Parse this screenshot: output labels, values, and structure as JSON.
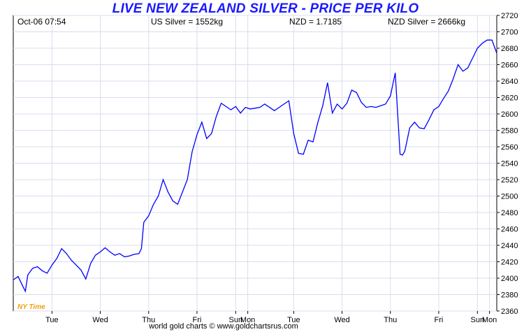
{
  "header": {
    "title": "LIVE NEW ZEALAND SILVER - PRICE PER KILO",
    "timestamp": "Oct-06  07:54",
    "us_silver": "US Silver = 1552kg",
    "nzd_rate": "NZD = 1.7185",
    "nzd_silver": "NZD Silver = 2666kg"
  },
  "footer": "world gold charts © www.goldchartsrus.com",
  "chart_data": {
    "type": "line",
    "title": "LIVE NEW ZEALAND SILVER - PRICE PER KILO",
    "timezone_label": "NY Time",
    "ylim": [
      2360,
      2720
    ],
    "y_ticks": [
      2360,
      2380,
      2400,
      2420,
      2440,
      2460,
      2480,
      2500,
      2520,
      2540,
      2560,
      2580,
      2600,
      2620,
      2640,
      2660,
      2680,
      2700,
      2720
    ],
    "x_range": [
      0,
      10
    ],
    "x_ticks": [
      {
        "label": "Tue",
        "x": 0.8
      },
      {
        "label": "Wed",
        "x": 1.8
      },
      {
        "label": "Thu",
        "x": 2.8
      },
      {
        "label": "Fri",
        "x": 3.8
      },
      {
        "label": "Sun",
        "x": 4.6
      },
      {
        "label": "Mon",
        "x": 4.85
      },
      {
        "label": "Tue",
        "x": 5.8
      },
      {
        "label": "Wed",
        "x": 6.8
      },
      {
        "label": "Thu",
        "x": 7.8
      },
      {
        "label": "Fri",
        "x": 8.8
      },
      {
        "label": "Sun",
        "x": 9.6
      },
      {
        "label": "Mon",
        "x": 9.85
      }
    ],
    "grid": true,
    "line_color": "#0000ff",
    "series": [
      {
        "x": [
          0.0,
          0.1,
          0.2,
          0.25,
          0.3,
          0.4,
          0.5,
          0.6,
          0.7,
          0.8,
          0.9,
          1.0,
          1.1,
          1.2,
          1.3,
          1.4,
          1.5,
          1.6,
          1.7,
          1.8,
          1.9,
          2.0,
          2.1,
          2.2,
          2.3,
          2.4,
          2.5,
          2.6,
          2.65,
          2.7,
          2.8,
          2.9,
          3.0,
          3.1,
          3.2,
          3.3,
          3.4,
          3.5,
          3.6,
          3.7,
          3.8,
          3.9,
          4.0,
          4.1,
          4.2,
          4.3,
          4.4,
          4.5,
          4.6,
          4.7,
          4.8,
          4.9,
          5.0,
          5.1,
          5.2,
          5.3,
          5.4,
          5.5,
          5.6,
          5.7,
          5.8,
          5.9,
          6.0,
          6.1,
          6.2,
          6.3,
          6.4,
          6.5,
          6.6,
          6.7,
          6.8,
          6.9,
          7.0,
          7.1,
          7.2,
          7.3,
          7.4,
          7.5,
          7.6,
          7.7,
          7.8,
          7.9,
          8.0,
          8.05,
          8.1,
          8.2,
          8.3,
          8.4,
          8.5,
          8.6,
          8.7,
          8.8,
          8.9,
          9.0,
          9.1,
          9.2,
          9.3,
          9.4,
          9.5,
          9.6,
          9.7,
          9.8,
          9.9,
          10.0
        ],
        "values": [
          2398,
          2402,
          2390,
          2384,
          2404,
          2412,
          2414,
          2409,
          2406,
          2416,
          2424,
          2436,
          2430,
          2422,
          2416,
          2410,
          2399,
          2418,
          2428,
          2432,
          2437,
          2432,
          2428,
          2430,
          2426,
          2427,
          2429,
          2430,
          2436,
          2468,
          2476,
          2490,
          2500,
          2520,
          2505,
          2494,
          2490,
          2505,
          2520,
          2554,
          2575,
          2590,
          2570,
          2576,
          2597,
          2613,
          2609,
          2605,
          2609,
          2601,
          2608,
          2606,
          2607,
          2608,
          2612,
          2608,
          2604,
          2608,
          2612,
          2616,
          2576,
          2552,
          2551,
          2568,
          2566,
          2590,
          2610,
          2638,
          2601,
          2612,
          2606,
          2613,
          2629,
          2626,
          2614,
          2608,
          2609,
          2608,
          2610,
          2612,
          2622,
          2650,
          2551,
          2550,
          2555,
          2583,
          2590,
          2583,
          2582,
          2593,
          2605,
          2609,
          2619,
          2628,
          2643,
          2660,
          2652,
          2656,
          2668,
          2680,
          2686,
          2690,
          2690,
          2674
        ]
      }
    ]
  }
}
